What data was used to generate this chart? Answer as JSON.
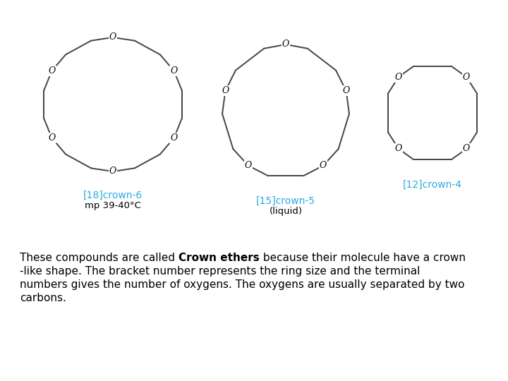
{
  "bg_color": "#ffffff",
  "text_color": "#000000",
  "cyan_color": "#29ABE2",
  "bond_color": "#444444",
  "label1": "[18]crown-6",
  "label1_sub": "mp 39-40°C",
  "label2": "[15]crown-5",
  "label2_sub": "(liquid)",
  "label3": "[12]crown-4",
  "fig_width": 7.2,
  "fig_height": 5.4,
  "lw": 1.4
}
